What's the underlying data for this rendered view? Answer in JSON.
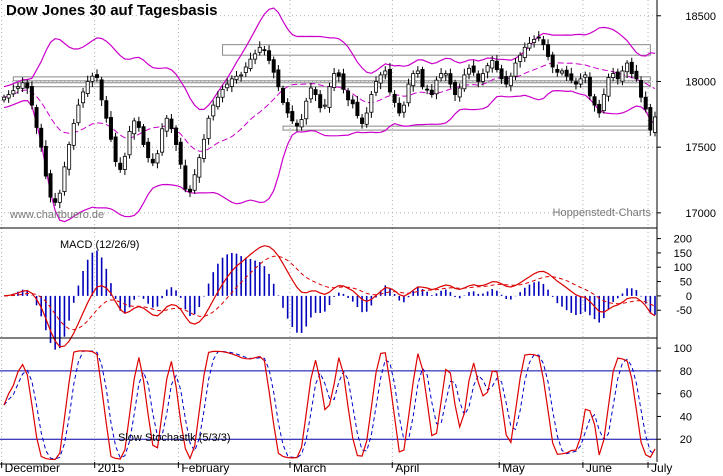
{
  "chart_data": [
    {
      "type": "candlestick",
      "title": "Dow Jones 30 auf Tagesbasis",
      "watermark_left": "www.chartbuero.de",
      "watermark_right": "Hoppenstedt-Charts",
      "x_axis_labels": [
        "December",
        "2015",
        "February",
        "March",
        "April",
        "May",
        "June",
        "July"
      ],
      "y_ticks": [
        17000,
        17500,
        18000,
        18500
      ],
      "ylim": [
        16900,
        18620
      ],
      "series": [
        {
          "name": "close",
          "values": [
            17880,
            17900,
            17930,
            17960,
            17990,
            17950,
            17820,
            17650,
            17500,
            17280,
            17120,
            17080,
            17150,
            17350,
            17520,
            17680,
            17820,
            17920,
            18000,
            18040,
            18030,
            17860,
            17720,
            17560,
            17390,
            17330,
            17430,
            17620,
            17700,
            17650,
            17520,
            17420,
            17380,
            17450,
            17640,
            17720,
            17640,
            17520,
            17370,
            17180,
            17160,
            17290,
            17420,
            17560,
            17720,
            17820,
            17880,
            17940,
            17980,
            18020,
            18040,
            18050,
            18110,
            18170,
            18210,
            18260,
            18240,
            18160,
            18070,
            17960,
            17840,
            17760,
            17700,
            17660,
            17710,
            17850,
            17950,
            17900,
            17800,
            17820,
            17960,
            18060,
            18040,
            17940,
            17860,
            17830,
            17740,
            17680,
            17760,
            17900,
            18000,
            18050,
            18080,
            17920,
            17840,
            17760,
            17820,
            17980,
            18060,
            18080,
            17960,
            17940,
            17900,
            18010,
            18060,
            18060,
            17980,
            17900,
            17950,
            18050,
            18100,
            18070,
            18000,
            18060,
            18120,
            18160,
            18090,
            18020,
            17980,
            18040,
            18140,
            18200,
            18260,
            18290,
            18320,
            18330,
            18280,
            18190,
            18110,
            18070,
            18080,
            18040,
            18010,
            17980,
            18020,
            18050,
            17890,
            17820,
            17760,
            17900,
            18030,
            18060,
            18020,
            18080,
            18140,
            18060,
            18020,
            17880,
            17790,
            17630,
            17730
          ]
        }
      ],
      "bollinger": {
        "period": 20,
        "k": 2
      },
      "support_resistance_boxes": [
        [
          17630,
          17660
        ],
        [
          18200,
          18280
        ],
        [
          18005,
          18035
        ],
        [
          17960,
          17990
        ]
      ]
    },
    {
      "type": "line",
      "label": "MACD (12/26/9)",
      "y_ticks": [
        200,
        150,
        100,
        50,
        0,
        -50
      ],
      "ylim": [
        -140,
        230
      ],
      "series": [
        {
          "name": "MACD",
          "style": "solid red"
        },
        {
          "name": "Signal",
          "style": "dashed red"
        },
        {
          "name": "Histogram",
          "style": "blue bars"
        }
      ]
    },
    {
      "type": "line",
      "label": "Slow Stochastik (5/3/3)",
      "y_ticks": [
        100,
        80,
        60,
        40,
        20
      ],
      "ylim": [
        0,
        108
      ],
      "levels": [
        80,
        20
      ],
      "series": [
        {
          "name": "%K",
          "style": "solid red"
        },
        {
          "name": "%D",
          "style": "dashed blue"
        }
      ]
    }
  ],
  "colors": {
    "background": "#ffffff",
    "candle_up": "#ffffff",
    "candle_down": "#000000",
    "bollinger": "#cc00cc",
    "macd": "#dd0000",
    "signal": "#dd0000",
    "histogram": "#0000bb",
    "stoch_k": "#dd0000",
    "stoch_d": "#0000cc",
    "stoch_levels": "#0000aa",
    "grid": "#999999",
    "box": "#888888"
  }
}
